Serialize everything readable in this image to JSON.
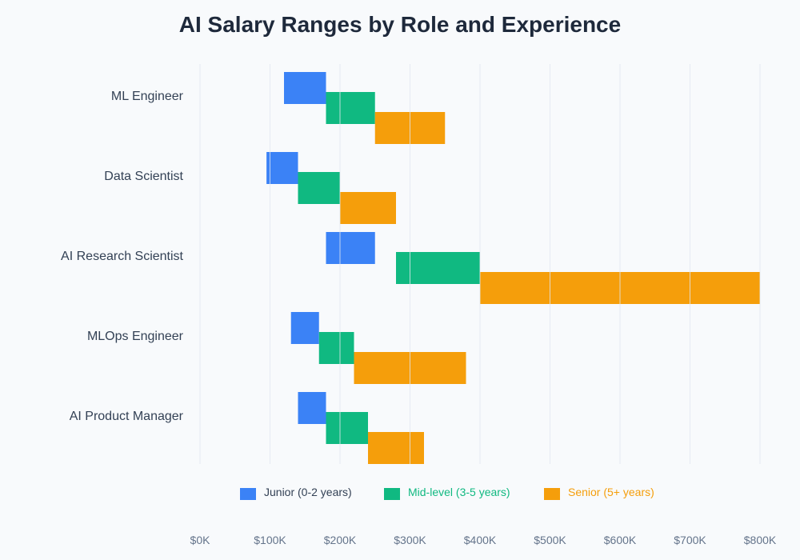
{
  "chart_data": {
    "type": "bar",
    "orientation": "horizontal-range",
    "title": "AI Salary Ranges by Role and Experience",
    "xlabel": "",
    "ylabel": "",
    "xlim": [
      0,
      800
    ],
    "x_unit": "thousand USD",
    "x_ticks": [
      0,
      100,
      200,
      300,
      400,
      500,
      600,
      700,
      800
    ],
    "x_tick_labels": [
      "$0K",
      "$100K",
      "$200K",
      "$300K",
      "$400K",
      "$500K",
      "$600K",
      "$700K",
      "$800K"
    ],
    "grid": true,
    "legend_position": "bottom",
    "categories": [
      "ML Engineer",
      "Data Scientist",
      "AI Research Scientist",
      "MLOps Engineer",
      "AI Product Manager"
    ],
    "series": [
      {
        "name": "Junior (0-2 years)",
        "color": "#3b82f6",
        "ranges": [
          [
            120,
            180
          ],
          [
            95,
            140
          ],
          [
            180,
            250
          ],
          [
            130,
            170
          ],
          [
            140,
            180
          ]
        ]
      },
      {
        "name": "Mid-level (3-5 years)",
        "color": "#10b981",
        "ranges": [
          [
            180,
            250
          ],
          [
            140,
            200
          ],
          [
            280,
            400
          ],
          [
            170,
            220
          ],
          [
            180,
            240
          ]
        ]
      },
      {
        "name": "Senior (5+ years)",
        "color": "#f59e0b",
        "ranges": [
          [
            250,
            350
          ],
          [
            200,
            280
          ],
          [
            400,
            800
          ],
          [
            220,
            380
          ],
          [
            240,
            320
          ]
        ]
      }
    ]
  },
  "legend_text_colors": [
    "#334155",
    "#10b981",
    "#f59e0b"
  ]
}
